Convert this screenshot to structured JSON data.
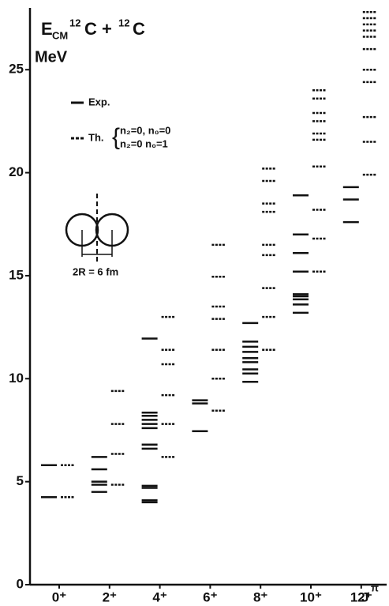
{
  "chart_data": {
    "type": "levels",
    "title_parts": [
      "E",
      "CM",
      "12",
      "C + ",
      "12",
      "C"
    ],
    "unit": "MeV",
    "xlabel": "J",
    "xlabel_sup": "π",
    "legend_theory_conditions": [
      "n₂=0,  n₀=0",
      "n₂=0   n₀=1"
    ],
    "annotation": "2R = 6 fm",
    "categories": [
      "0⁺",
      "2⁺",
      "4⁺",
      "6⁺",
      "8⁺",
      "10⁺",
      "12⁺"
    ],
    "ylim": [
      0,
      28
    ],
    "yticks": [
      0,
      5,
      10,
      15,
      20,
      25
    ],
    "series": [
      {
        "name": "Exp.",
        "color": "#111111",
        "dash": false,
        "values": [
          [
            4.25,
            5.8
          ],
          [
            4.5,
            4.85,
            5.0,
            5.6,
            6.2
          ],
          [
            4.0,
            4.1,
            4.7,
            4.8,
            6.6,
            6.8,
            7.6,
            7.8,
            8.0,
            8.2,
            8.35,
            11.95
          ],
          [
            7.45,
            8.8,
            8.95
          ],
          [
            9.85,
            10.25,
            10.45,
            10.8,
            11.0,
            11.3,
            11.55,
            11.8,
            12.7
          ],
          [
            13.2,
            13.6,
            13.85,
            14.0,
            14.1,
            15.2,
            16.1,
            17.0,
            18.9
          ],
          [
            17.6,
            18.7,
            19.3
          ]
        ]
      },
      {
        "name": "Th.",
        "color": "#111111",
        "dash": true,
        "values": [
          [
            4.25,
            5.8
          ],
          [
            4.85,
            6.35,
            7.8,
            9.4
          ],
          [
            6.2,
            7.8,
            9.2,
            10.7,
            11.4,
            13.0
          ],
          [
            8.45,
            10.0,
            11.4,
            12.9,
            13.5,
            14.95,
            16.5
          ],
          [
            11.4,
            13.0,
            14.4,
            16.0,
            16.5,
            18.1,
            18.5,
            19.6,
            20.2
          ],
          [
            15.2,
            16.8,
            18.2,
            20.3,
            21.6,
            21.9,
            22.5,
            22.9,
            23.6,
            24.0
          ],
          [
            19.9,
            21.5,
            22.7,
            24.4,
            25.0,
            26.0,
            26.6,
            26.9,
            27.2,
            27.5,
            27.8
          ]
        ]
      }
    ]
  }
}
